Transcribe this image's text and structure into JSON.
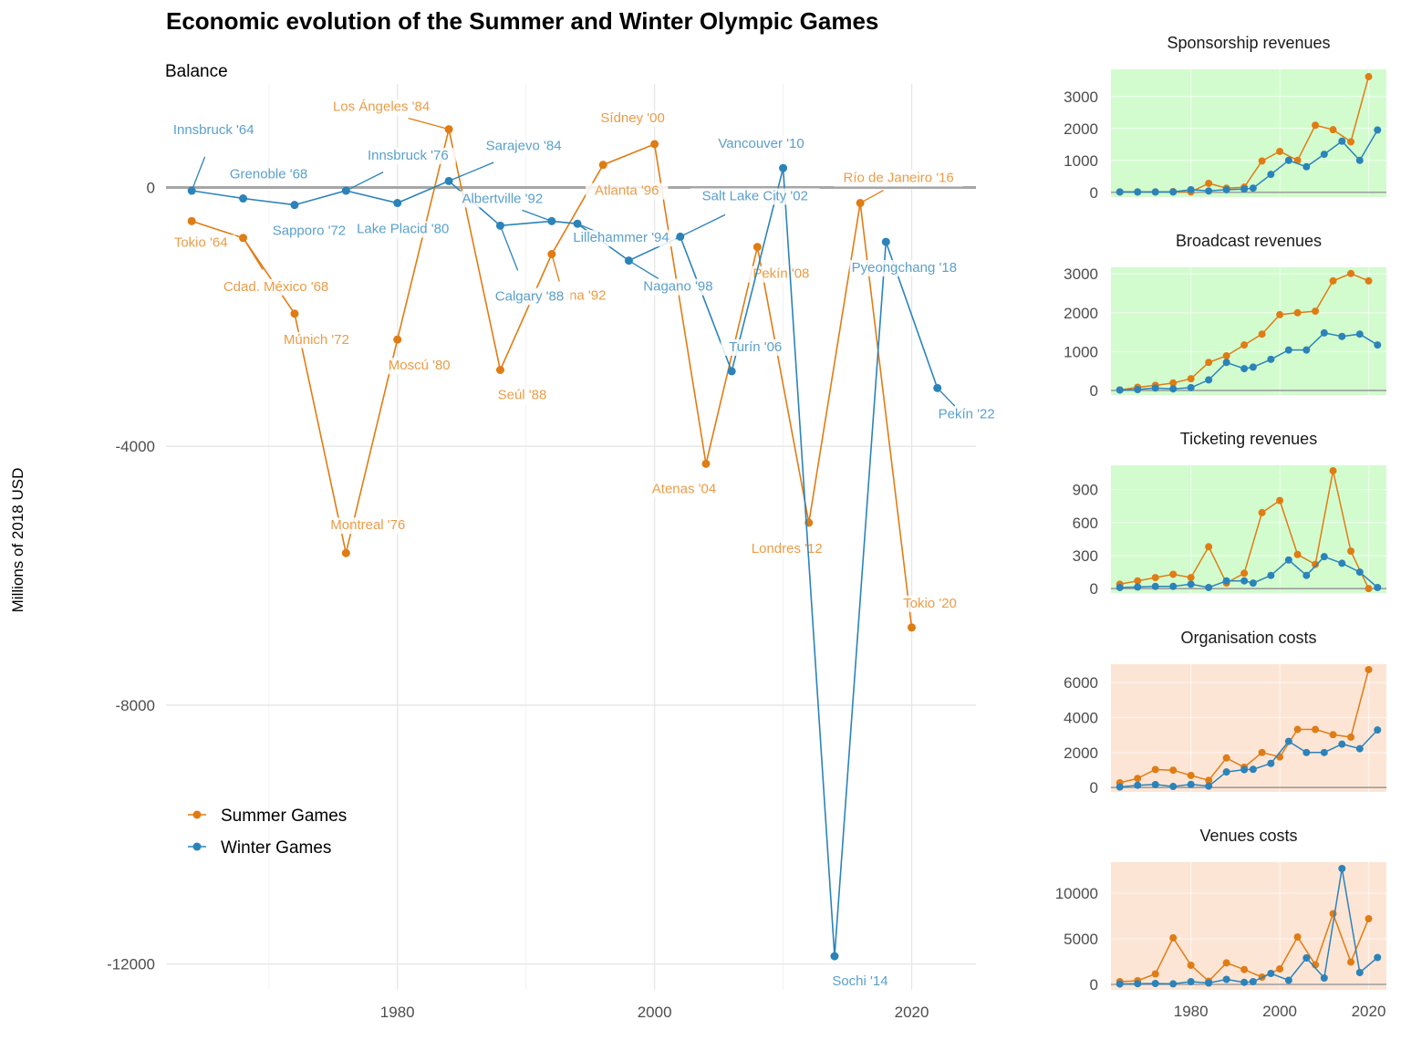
{
  "title": "Economic evolution of the Summer and Winter Olympic Games",
  "colors": {
    "summer": "#e07c14",
    "winter": "#2b83ba",
    "summer_label": "#eb9c47",
    "winter_label": "#5aa0cc",
    "revenue_bg": "#d2fcce",
    "cost_bg": "#fde5d5"
  },
  "chart_data": [
    {
      "type": "line",
      "subtitle": "Balance",
      "ylabel": "Millions of 2018 USD",
      "xlim": [
        1962,
        2025
      ],
      "ylim": [
        -12400,
        1600
      ],
      "x_ticks": [
        1980,
        2000,
        2020
      ],
      "y_ticks": [
        0,
        -4000,
        -8000,
        -12000
      ],
      "legend": {
        "placement": "bottom-left",
        "entries": [
          "Summer Games",
          "Winter Games"
        ]
      },
      "series": [
        {
          "name": "Summer Games",
          "points": [
            {
              "x": 1964,
              "y": -520,
              "label": "Tokio '64"
            },
            {
              "x": 1968,
              "y": -780,
              "label": "Cdad. México '68"
            },
            {
              "x": 1972,
              "y": -1950,
              "label": "Múnich '72"
            },
            {
              "x": 1976,
              "y": -5650,
              "label": "Montreal '76"
            },
            {
              "x": 1980,
              "y": -2350,
              "label": "Moscú '80"
            },
            {
              "x": 1984,
              "y": 900,
              "label": "Los Ángeles '84"
            },
            {
              "x": 1988,
              "y": -2820,
              "label": "Seúl '88"
            },
            {
              "x": 1992,
              "y": -1030,
              "label": "Barcelona '92"
            },
            {
              "x": 1996,
              "y": 350,
              "label": "Atlanta '96"
            },
            {
              "x": 2000,
              "y": 670,
              "label": "Sídney '00"
            },
            {
              "x": 2004,
              "y": -4270,
              "label": "Atenas '04"
            },
            {
              "x": 2008,
              "y": -920,
              "label": "Pekín '08"
            },
            {
              "x": 2012,
              "y": -5180,
              "label": "Londres '12"
            },
            {
              "x": 2016,
              "y": -240,
              "label": "Río de Janeiro '16"
            },
            {
              "x": 2020,
              "y": -6800,
              "label": "Tokio '20"
            }
          ]
        },
        {
          "name": "Winter Games",
          "points": [
            {
              "x": 1964,
              "y": -50,
              "label": "Innsbruck '64"
            },
            {
              "x": 1968,
              "y": -170,
              "label": "Grenoble '68"
            },
            {
              "x": 1972,
              "y": -270,
              "label": "Sapporo '72"
            },
            {
              "x": 1976,
              "y": -50,
              "label": "Innsbruck '76"
            },
            {
              "x": 1980,
              "y": -240,
              "label": "Lake Placid '80"
            },
            {
              "x": 1984,
              "y": 100,
              "label": "Sarajevo '84"
            },
            {
              "x": 1988,
              "y": -590,
              "label": "Calgary '88"
            },
            {
              "x": 1992,
              "y": -520,
              "label": "Albertville '92"
            },
            {
              "x": 1994,
              "y": -560,
              "label": "Lillehammer '94"
            },
            {
              "x": 1998,
              "y": -1130,
              "label": "Nagano '98"
            },
            {
              "x": 2002,
              "y": -760,
              "label": "Salt Lake City '02"
            },
            {
              "x": 2006,
              "y": -2840,
              "label": "Turín '06"
            },
            {
              "x": 2010,
              "y": 300,
              "label": "Vancouver '10"
            },
            {
              "x": 2014,
              "y": -11880,
              "label": "Sochi '14"
            },
            {
              "x": 2018,
              "y": -840,
              "label": "Pyeongchang '18"
            },
            {
              "x": 2022,
              "y": -3100,
              "label": "Pekín '22"
            }
          ]
        }
      ]
    },
    {
      "type": "line",
      "title": "Sponsorship revenues",
      "kind": "revenue",
      "ylim": [
        -150,
        3850
      ],
      "y_ticks": [
        0,
        1000,
        2000,
        3000
      ],
      "series": [
        {
          "name": "Summer Games",
          "x": [
            1964,
            1968,
            1972,
            1976,
            1980,
            1984,
            1988,
            1992,
            1996,
            2000,
            2004,
            2008,
            2012,
            2016,
            2020
          ],
          "values": [
            10,
            10,
            10,
            20,
            10,
            280,
            130,
            160,
            980,
            1280,
            1000,
            2100,
            1960,
            1580,
            3620
          ]
        },
        {
          "name": "Winter Games",
          "x": [
            1964,
            1968,
            1972,
            1976,
            1980,
            1984,
            1988,
            1992,
            1994,
            1998,
            2002,
            2006,
            2010,
            2014,
            2018,
            2022
          ],
          "values": [
            10,
            10,
            10,
            10,
            80,
            40,
            80,
            100,
            130,
            560,
            1000,
            800,
            1190,
            1600,
            1000,
            1950
          ]
        }
      ]
    },
    {
      "type": "line",
      "title": "Broadcast revenues",
      "kind": "revenue",
      "ylim": [
        -120,
        3170
      ],
      "y_ticks": [
        0,
        1000,
        2000,
        3000
      ],
      "series": [
        {
          "name": "Summer Games",
          "x": [
            1964,
            1968,
            1972,
            1976,
            1980,
            1984,
            1988,
            1992,
            1996,
            2000,
            2004,
            2008,
            2012,
            2016,
            2020
          ],
          "values": [
            10,
            80,
            130,
            190,
            300,
            720,
            890,
            1170,
            1450,
            1950,
            2000,
            2040,
            2820,
            3010,
            2820
          ]
        },
        {
          "name": "Winter Games",
          "x": [
            1964,
            1968,
            1972,
            1976,
            1980,
            1984,
            1988,
            1992,
            1994,
            1998,
            2002,
            2006,
            2010,
            2014,
            2018,
            2022
          ],
          "values": [
            10,
            20,
            60,
            40,
            70,
            270,
            720,
            560,
            600,
            800,
            1040,
            1040,
            1480,
            1390,
            1450,
            1170
          ]
        }
      ]
    },
    {
      "type": "line",
      "title": "Ticketing revenues",
      "kind": "revenue",
      "ylim": [
        -40,
        1120
      ],
      "y_ticks": [
        0,
        300,
        600,
        900
      ],
      "series": [
        {
          "name": "Summer Games",
          "x": [
            1964,
            1968,
            1972,
            1976,
            1980,
            1984,
            1988,
            1992,
            1996,
            2000,
            2004,
            2008,
            2012,
            2016,
            2020
          ],
          "values": [
            40,
            70,
            100,
            130,
            100,
            380,
            50,
            140,
            690,
            800,
            310,
            220,
            1070,
            340,
            0
          ]
        },
        {
          "name": "Winter Games",
          "x": [
            1964,
            1968,
            1972,
            1976,
            1980,
            1984,
            1988,
            1992,
            1994,
            1998,
            2002,
            2006,
            2010,
            2014,
            2018,
            2022
          ],
          "values": [
            10,
            15,
            20,
            20,
            40,
            10,
            70,
            70,
            50,
            120,
            260,
            120,
            290,
            230,
            150,
            10
          ]
        }
      ]
    },
    {
      "type": "line",
      "title": "Organisation costs",
      "kind": "cost",
      "ylim": [
        -250,
        7050
      ],
      "y_ticks": [
        0,
        2000,
        4000,
        6000
      ],
      "series": [
        {
          "name": "Summer Games",
          "x": [
            1964,
            1968,
            1972,
            1976,
            1980,
            1984,
            1988,
            1992,
            1996,
            2000,
            2004,
            2008,
            2012,
            2016,
            2020
          ],
          "values": [
            270,
            520,
            1030,
            990,
            690,
            410,
            1690,
            1160,
            2000,
            1750,
            3320,
            3320,
            3020,
            2880,
            6740
          ]
        },
        {
          "name": "Winter Games",
          "x": [
            1964,
            1968,
            1972,
            1976,
            1980,
            1984,
            1988,
            1992,
            1994,
            1998,
            2002,
            2006,
            2010,
            2014,
            2018,
            2022
          ],
          "values": [
            30,
            130,
            170,
            60,
            180,
            80,
            890,
            1020,
            1040,
            1380,
            2640,
            2000,
            2000,
            2480,
            2220,
            3290
          ]
        }
      ]
    },
    {
      "type": "line",
      "title": "Venues costs",
      "kind": "cost",
      "ylim": [
        -600,
        13400
      ],
      "y_ticks": [
        0,
        5000,
        10000
      ],
      "series": [
        {
          "name": "Summer Games",
          "x": [
            1964,
            1968,
            1972,
            1976,
            1980,
            1984,
            1988,
            1992,
            1996,
            2000,
            2004,
            2008,
            2012,
            2016,
            2020
          ],
          "values": [
            300,
            400,
            1150,
            5100,
            2100,
            350,
            2360,
            1630,
            800,
            1700,
            5200,
            2150,
            7750,
            2450,
            7200
          ]
        },
        {
          "name": "Winter Games",
          "x": [
            1964,
            1968,
            1972,
            1976,
            1980,
            1984,
            1988,
            1992,
            1994,
            1998,
            2002,
            2006,
            2010,
            2014,
            2018,
            2022
          ],
          "values": [
            50,
            80,
            100,
            60,
            300,
            150,
            550,
            230,
            300,
            1200,
            450,
            2900,
            700,
            12700,
            1300,
            2950
          ]
        }
      ]
    }
  ]
}
